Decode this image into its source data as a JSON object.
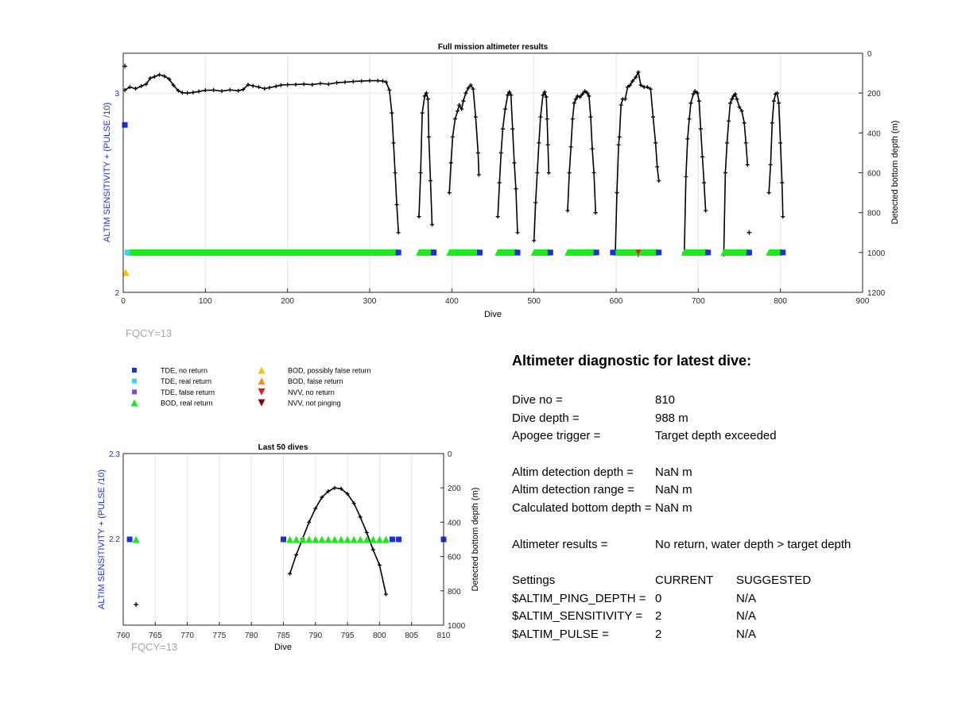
{
  "chart_data": [
    {
      "type": "scatter",
      "title": "Full mission altimeter results",
      "xlabel": "Dive",
      "ylabel_left": "ALTIM SENSITIVITY + (PULSE /10)",
      "ylabel_right": "Detected bottom depth (m)",
      "xlim": [
        0,
        900
      ],
      "xticks": [
        0,
        100,
        200,
        300,
        400,
        500,
        600,
        700,
        800,
        900
      ],
      "ylim_left": [
        2,
        3.2
      ],
      "yticks_left": [
        2,
        3
      ],
      "ylim_right": [
        0,
        1200
      ],
      "right_axis_reversed": true,
      "yticks_right": [
        0,
        200,
        400,
        600,
        800,
        1000,
        1200
      ],
      "grid": "vertical",
      "bottom_depth_series": [
        [
          [
            2,
            185
          ],
          [
            8,
            170
          ],
          [
            15,
            178
          ],
          [
            22,
            165
          ],
          [
            28,
            155
          ],
          [
            33,
            125
          ],
          [
            38,
            118
          ],
          [
            44,
            108
          ],
          [
            50,
            115
          ],
          [
            56,
            130
          ],
          [
            61,
            160
          ],
          [
            67,
            188
          ],
          [
            72,
            198
          ],
          [
            78,
            200
          ],
          [
            85,
            197
          ],
          [
            92,
            192
          ],
          [
            100,
            186
          ],
          [
            110,
            185
          ],
          [
            120,
            190
          ],
          [
            130,
            184
          ],
          [
            140,
            188
          ],
          [
            146,
            182
          ],
          [
            152,
            158
          ],
          [
            158,
            164
          ],
          [
            165,
            170
          ],
          [
            172,
            178
          ],
          [
            178,
            173
          ],
          [
            186,
            166
          ],
          [
            192,
            160
          ],
          [
            200,
            158
          ],
          [
            210,
            157
          ],
          [
            220,
            155
          ],
          [
            230,
            158
          ],
          [
            240,
            152
          ],
          [
            250,
            155
          ],
          [
            260,
            148
          ],
          [
            270,
            145
          ],
          [
            280,
            142
          ],
          [
            290,
            140
          ],
          [
            300,
            138
          ],
          [
            310,
            138
          ],
          [
            316,
            140
          ],
          [
            320,
            145
          ],
          [
            324,
            185
          ],
          [
            327,
            300
          ],
          [
            329,
            450
          ],
          [
            331,
            600
          ],
          [
            333,
            760
          ],
          [
            335,
            900
          ]
        ],
        [
          [
            360,
            820
          ],
          [
            362,
            600
          ],
          [
            364,
            300
          ],
          [
            367,
            215
          ],
          [
            369,
            200
          ],
          [
            371,
            230
          ],
          [
            372,
            420
          ],
          [
            374,
            640
          ],
          [
            376,
            860
          ]
        ],
        [
          [
            397,
            700
          ],
          [
            399,
            550
          ],
          [
            401,
            420
          ],
          [
            404,
            330
          ],
          [
            407,
            290
          ],
          [
            409,
            260
          ],
          [
            412,
            280
          ],
          [
            414,
            240
          ],
          [
            417,
            200
          ],
          [
            420,
            175
          ],
          [
            423,
            160
          ],
          [
            426,
            180
          ],
          [
            429,
            320
          ],
          [
            432,
            500
          ],
          [
            433,
            610
          ]
        ],
        [
          [
            456,
            820
          ],
          [
            458,
            650
          ],
          [
            460,
            500
          ],
          [
            462,
            380
          ],
          [
            465,
            280
          ],
          [
            468,
            210
          ],
          [
            470,
            195
          ],
          [
            472,
            210
          ],
          [
            474,
            380
          ],
          [
            476,
            550
          ],
          [
            478,
            680
          ],
          [
            480,
            900
          ]
        ],
        [
          [
            500,
            940
          ],
          [
            502,
            750
          ],
          [
            504,
            600
          ],
          [
            506,
            450
          ],
          [
            508,
            320
          ],
          [
            511,
            210
          ],
          [
            513,
            195
          ],
          [
            515,
            220
          ],
          [
            516,
            330
          ],
          [
            517,
            460
          ],
          [
            518,
            600
          ]
        ],
        [
          [
            541,
            790
          ],
          [
            543,
            600
          ],
          [
            545,
            470
          ],
          [
            547,
            330
          ],
          [
            549,
            250
          ],
          [
            551,
            230
          ],
          [
            553,
            215
          ],
          [
            556,
            220
          ],
          [
            559,
            205
          ],
          [
            562,
            190
          ],
          [
            565,
            200
          ],
          [
            567,
            215
          ],
          [
            569,
            320
          ],
          [
            571,
            480
          ],
          [
            573,
            600
          ],
          [
            575,
            800
          ]
        ],
        [
          [
            599,
            1000
          ],
          [
            601,
            700
          ],
          [
            603,
            460
          ],
          [
            604,
            420
          ],
          [
            606,
            260
          ],
          [
            608,
            230
          ],
          [
            611,
            230
          ],
          [
            614,
            170
          ],
          [
            617,
            160
          ],
          [
            620,
            140
          ],
          [
            624,
            120
          ],
          [
            627,
            95
          ],
          [
            630,
            160
          ],
          [
            634,
            170
          ],
          [
            638,
            170
          ],
          [
            642,
            180
          ],
          [
            645,
            320
          ],
          [
            648,
            450
          ],
          [
            650,
            570
          ],
          [
            652,
            640
          ]
        ],
        [
          [
            683,
            1000
          ],
          [
            685,
            620
          ],
          [
            687,
            430
          ],
          [
            689,
            330
          ],
          [
            691,
            250
          ],
          [
            694,
            205
          ],
          [
            696,
            190
          ],
          [
            699,
            200
          ],
          [
            701,
            240
          ],
          [
            703,
            380
          ],
          [
            705,
            520
          ],
          [
            707,
            650
          ],
          [
            709,
            790
          ]
        ],
        [
          [
            731,
            1010
          ],
          [
            733,
            600
          ],
          [
            735,
            450
          ],
          [
            737,
            340
          ],
          [
            739,
            250
          ],
          [
            741,
            230
          ],
          [
            743,
            215
          ],
          [
            745,
            205
          ],
          [
            747,
            230
          ],
          [
            750,
            270
          ],
          [
            753,
            290
          ],
          [
            756,
            350
          ],
          [
            758,
            450
          ],
          [
            760,
            560
          ]
        ],
        [
          [
            786,
            700
          ],
          [
            788,
            560
          ],
          [
            790,
            350
          ],
          [
            792,
            240
          ],
          [
            794,
            205
          ],
          [
            796,
            200
          ],
          [
            798,
            250
          ],
          [
            800,
            450
          ],
          [
            802,
            650
          ],
          [
            803,
            820
          ]
        ]
      ],
      "isolated_depth_points": [
        [
          2,
          65
        ],
        [
          762,
          900
        ],
        [
          627,
          1010
        ]
      ],
      "series_TDE_no_return": [
        [
          2,
          2.84
        ],
        [
          335,
          2.2
        ],
        [
          378,
          2.2
        ],
        [
          434,
          2.2
        ],
        [
          480,
          2.2
        ],
        [
          520,
          2.2
        ],
        [
          576,
          2.2
        ],
        [
          596,
          2.2
        ],
        [
          652,
          2.2
        ],
        [
          712,
          2.2
        ],
        [
          762,
          2.2
        ],
        [
          803,
          2.2
        ]
      ],
      "series_TDE_real_return": [
        [
          5,
          2.2
        ]
      ],
      "series_BOD_real_return": [
        [
          8,
          335
        ],
        [
          360,
          380
        ],
        [
          397,
          434
        ],
        [
          456,
          480
        ],
        [
          500,
          520
        ],
        [
          541,
          576
        ],
        [
          600,
          652
        ],
        [
          683,
          712
        ],
        [
          731,
          762
        ],
        [
          786,
          803
        ]
      ],
      "series_BOD_possibly_false": [
        [
          3,
          2.1
        ]
      ],
      "series_NVV_no_return": [
        [
          627,
          2.2
        ]
      ]
    },
    {
      "type": "scatter",
      "title": "Last 50 dives",
      "xlabel": "Dive",
      "ylabel_left": "ALTIM SENSITIVITY + (PULSE /10)",
      "ylabel_right": "Detected bottom depth (m)",
      "xlim": [
        760,
        810
      ],
      "xticks": [
        760,
        765,
        770,
        775,
        780,
        785,
        790,
        795,
        800,
        805,
        810
      ],
      "ylim_left": [
        2.1,
        2.3
      ],
      "yticks_left": [
        2.2,
        2.3
      ],
      "ylim_right": [
        0,
        1000
      ],
      "right_axis_reversed": true,
      "yticks_right": [
        0,
        200,
        400,
        600,
        800,
        1000
      ],
      "grid": "vertical",
      "bottom_depth_series": [
        [
          786,
          700
        ],
        [
          787,
          590
        ],
        [
          788,
          495
        ],
        [
          789,
          400
        ],
        [
          790,
          320
        ],
        [
          791,
          255
        ],
        [
          792,
          220
        ],
        [
          793,
          200
        ],
        [
          794,
          205
        ],
        [
          795,
          235
        ],
        [
          796,
          290
        ],
        [
          797,
          370
        ],
        [
          798,
          460
        ],
        [
          799,
          560
        ],
        [
          800,
          650
        ],
        [
          801,
          820
        ]
      ],
      "isolated_depth_points": [
        [
          762,
          880
        ]
      ],
      "series_TDE_no_return": [
        [
          761,
          2.2
        ],
        [
          785,
          2.2
        ],
        [
          802,
          2.2
        ],
        [
          803,
          2.2
        ],
        [
          810,
          2.2
        ]
      ],
      "series_BOD_real_return": [
        [
          762,
          2.2
        ],
        [
          786,
          2.2
        ],
        [
          787,
          2.2
        ],
        [
          788,
          2.2
        ],
        [
          789,
          2.2
        ],
        [
          790,
          2.2
        ],
        [
          791,
          2.2
        ],
        [
          792,
          2.2
        ],
        [
          793,
          2.2
        ],
        [
          794,
          2.2
        ],
        [
          795,
          2.2
        ],
        [
          796,
          2.2
        ],
        [
          797,
          2.2
        ],
        [
          798,
          2.2
        ],
        [
          799,
          2.2
        ],
        [
          800,
          2.2
        ],
        [
          801,
          2.2
        ]
      ]
    }
  ],
  "fqcy_label": "FQCY=13",
  "legend": [
    {
      "label": "TDE, no return",
      "marker": "square",
      "color": "#1f2fd1"
    },
    {
      "label": "TDE, real return",
      "marker": "square",
      "color": "#37d3f5"
    },
    {
      "label": "TDE, false return",
      "marker": "square",
      "color": "#8a44d6"
    },
    {
      "label": "BOD, real return",
      "marker": "triangle-up",
      "color": "#1ee81e"
    },
    {
      "label": "BOD, possibly false return",
      "marker": "triangle-up",
      "color": "#f5c218"
    },
    {
      "label": "BOD, false return",
      "marker": "triangle-up",
      "color": "#f28f1c"
    },
    {
      "label": "NVV, no return",
      "marker": "triangle-down",
      "color": "#e02020"
    },
    {
      "label": "NVV, not pinging",
      "marker": "triangle-down",
      "color": "#7a0b0b"
    }
  ],
  "colors": {
    "left_axis": "#1f2fd1",
    "tde_no_return": "#1f2fd1",
    "tde_real_return": "#37d3f5",
    "bod_real_return": "#1ee81e",
    "bod_possibly_false": "#f5c218",
    "nvv_no_return": "#e02020",
    "depth_line": "#000000",
    "grid": "#e6e6e6",
    "fqcy": "#a6a6a6"
  },
  "diagnostic": {
    "title": "Altimeter diagnostic for latest dive:",
    "dive_no_label": "Dive no =",
    "dive_no_value": "810",
    "dive_depth_label": "Dive depth =",
    "dive_depth_value": "988 m",
    "apogee_label": "Apogee trigger =",
    "apogee_value": "Target depth exceeded",
    "det_depth_label": "Altim detection depth =",
    "det_depth_value": "NaN m",
    "det_range_label": "Altim detection range =",
    "det_range_value": "NaN m",
    "calc_depth_label": "Calculated bottom depth =",
    "calc_depth_value": "NaN m",
    "results_label": "Altimeter results =",
    "results_value": "No return, water depth > target depth",
    "settings_header": "Settings",
    "current_header": "CURRENT",
    "suggested_header": "SUGGESTED",
    "ping_depth_label": "$ALTIM_PING_DEPTH =",
    "ping_depth_current": "0",
    "ping_depth_suggested": "N/A",
    "sensitivity_label": "$ALTIM_SENSITIVITY =",
    "sensitivity_current": "2",
    "sensitivity_suggested": "N/A",
    "pulse_label": "$ALTIM_PULSE =",
    "pulse_current": "2",
    "pulse_suggested": "N/A"
  }
}
